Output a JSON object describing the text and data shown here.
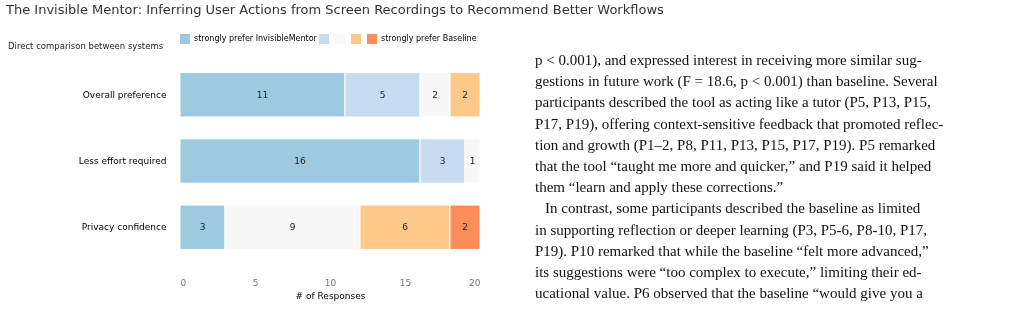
{
  "chart_data": {
    "type": "bar",
    "orientation": "horizontal",
    "stacked": true,
    "title": "The Invisible Mentor: Inferring User Actions from Screen Recordings to Recommend Better Workflows",
    "subtitle": "Direct comparison between systems",
    "xlabel": "# of Responses",
    "categories": [
      "Overall preference",
      "Less effort required",
      "Privacy confidence"
    ],
    "series": [
      {
        "name": "strongly prefer InvisibleMentor",
        "color": "#9ecae1",
        "values": [
          11,
          16,
          3
        ],
        "value_labels": [
          "11",
          "16",
          "3"
        ]
      },
      {
        "color": "#c6dbef",
        "values": [
          5,
          3,
          0
        ],
        "value_labels": [
          "5",
          "3",
          null
        ]
      },
      {
        "color": "#f7f7f7",
        "values": [
          2,
          1,
          9
        ],
        "value_labels": [
          "2",
          "1",
          "9"
        ]
      },
      {
        "color": "#fdc98b",
        "values": [
          2,
          0,
          6
        ],
        "value_labels": [
          "2",
          null,
          "6"
        ]
      },
      {
        "name": "strongly prefer Baseline",
        "color": "#fc8d59",
        "values": [
          0,
          0,
          2
        ],
        "value_labels": [
          null,
          null,
          "2"
        ]
      }
    ],
    "xlim": [
      0,
      20
    ],
    "xticks": [
      0,
      5,
      10,
      15,
      20
    ],
    "grid": false,
    "legend": "top",
    "annotations": [
      "p < 0.001), and expressed interest in receiving more similar sug-",
      "gestions in future work (F = 18.6, p < 0.001) than baseline. Several",
      "participants described the tool as acting like a tutor (P5, P13, P15,",
      "P17, P19), offering context-sensitive feedback that promoted reflec-",
      "tion and growth (P1–2, P8, P11, P13, P15, P17, P19). P5 remarked",
      "that the tool “taught me more and quicker,” and P19 said it helped",
      "them “learn and apply these corrections.”",
      "In contrast, some participants described the baseline as limited",
      "in supporting reflection or deeper learning (P3, P5-6, P8-10, P17,",
      "P19). P10 remarked that while the baseline “felt more advanced,”",
      "its suggestions were “too complex to execute,” limiting their ed-",
      "ucational value. P6 observed that the baseline “would give you a"
    ]
  }
}
